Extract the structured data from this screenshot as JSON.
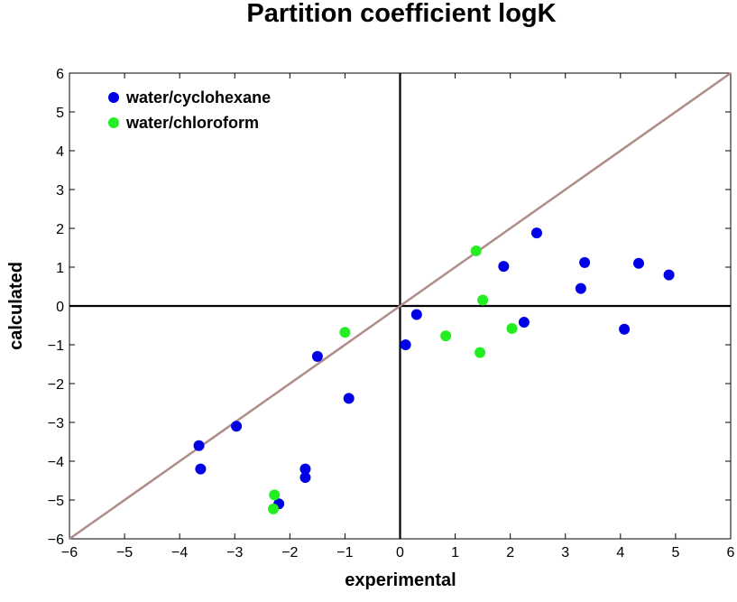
{
  "chart_data": {
    "type": "scatter",
    "title": "Partition coefficient logK",
    "xlabel": "experimental",
    "ylabel": "calculated",
    "xlim": [
      -6,
      6
    ],
    "ylim": [
      -6,
      6
    ],
    "xticks": [
      "−6",
      "−5",
      "−4",
      "−3",
      "−2",
      "−1",
      "0",
      "1",
      "2",
      "3",
      "4",
      "5",
      "6"
    ],
    "yticks": [
      "−6",
      "−5",
      "−4",
      "−3",
      "−2",
      "−1",
      "0",
      "1",
      "2",
      "3",
      "4",
      "5",
      "6"
    ],
    "grid": false,
    "legend_position": "top-left",
    "reference_line": {
      "slope": 1,
      "intercept": 0,
      "color": "#b08c88"
    },
    "zero_lines": true,
    "series": [
      {
        "name": "water/cyclohexane",
        "color": "#0000e6",
        "points": [
          [
            -3.65,
            -3.6
          ],
          [
            -3.62,
            -4.2
          ],
          [
            -2.97,
            -3.1
          ],
          [
            -2.2,
            -5.1
          ],
          [
            -1.72,
            -4.2
          ],
          [
            -1.72,
            -4.42
          ],
          [
            -1.5,
            -1.3
          ],
          [
            -0.93,
            -2.38
          ],
          [
            0.1,
            -1.0
          ],
          [
            0.3,
            -0.22
          ],
          [
            1.88,
            1.02
          ],
          [
            2.25,
            -0.42
          ],
          [
            2.48,
            1.88
          ],
          [
            3.28,
            0.45
          ],
          [
            3.35,
            1.12
          ],
          [
            4.07,
            -0.6
          ],
          [
            4.33,
            1.1
          ],
          [
            4.88,
            0.8
          ]
        ]
      },
      {
        "name": "water/chloroform",
        "color": "#22ee22",
        "points": [
          [
            -2.28,
            -4.87
          ],
          [
            -2.3,
            -5.23
          ],
          [
            -1.0,
            -0.68
          ],
          [
            0.83,
            -0.77
          ],
          [
            1.38,
            1.42
          ],
          [
            1.45,
            -1.2
          ],
          [
            1.5,
            0.15
          ],
          [
            2.03,
            -0.58
          ]
        ]
      }
    ]
  }
}
